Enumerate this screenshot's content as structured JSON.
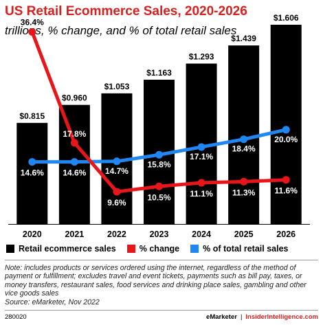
{
  "title": "US Retail Ecommerce Sales, 2020-2026",
  "subtitle": "trillions, % change, and % of total retail sales",
  "chart_data": {
    "type": "bar",
    "categories": [
      "2020",
      "2021",
      "2022",
      "2023",
      "2024",
      "2025",
      "2026"
    ],
    "series": [
      {
        "name": "Retail ecommerce sales",
        "kind": "bar",
        "color": "#000000",
        "values": [
          0.815,
          0.96,
          1.053,
          1.163,
          1.293,
          1.439,
          1.606
        ],
        "labels": [
          "$0.815",
          "$0.960",
          "$1.053",
          "$1.163",
          "$1.293",
          "$1.439",
          "$1.606"
        ]
      },
      {
        "name": "% change",
        "kind": "line",
        "color": "#e8161b",
        "values": [
          36.4,
          17.8,
          9.6,
          10.5,
          11.1,
          11.3,
          11.6
        ],
        "labels": [
          "36.4%",
          "17.8%",
          "9.6%",
          "10.5%",
          "11.1%",
          "11.3%",
          "11.6%"
        ]
      },
      {
        "name": "% of total retail sales",
        "kind": "line",
        "color": "#1f86f2",
        "values": [
          14.6,
          14.6,
          14.7,
          15.8,
          17.1,
          18.4,
          20.0
        ],
        "labels": [
          "14.6%",
          "14.6%",
          "14.7%",
          "15.8%",
          "17.1%",
          "18.4%",
          "20.0%"
        ]
      }
    ],
    "legend_position": "bottom-left",
    "grid": false
  },
  "legend": {
    "items": [
      {
        "label": "Retail ecommerce sales",
        "color": "#000000"
      },
      {
        "label": "% change",
        "color": "#e8161b"
      },
      {
        "label": "% of total retail sales",
        "color": "#1f86f2"
      }
    ]
  },
  "note": "Note: includes products or services ordered using the internet, regardless of the method of payment or fulfillment; excludes travel and event tickets, payments such as bill pay, taxes, or money transfers, restaurant sales, food services and drinking place sales, gambling and other vice goods sales",
  "source": "Source: eMarketer, Nov 2022",
  "footer": {
    "chart_id": "280020",
    "brand": "eMarketer",
    "divider": "|",
    "site": "InsiderIntelligence.com"
  },
  "colors": {
    "title": "#d6211f",
    "bars": "#000000",
    "change_line": "#e8161b",
    "share_line": "#1f86f2"
  }
}
